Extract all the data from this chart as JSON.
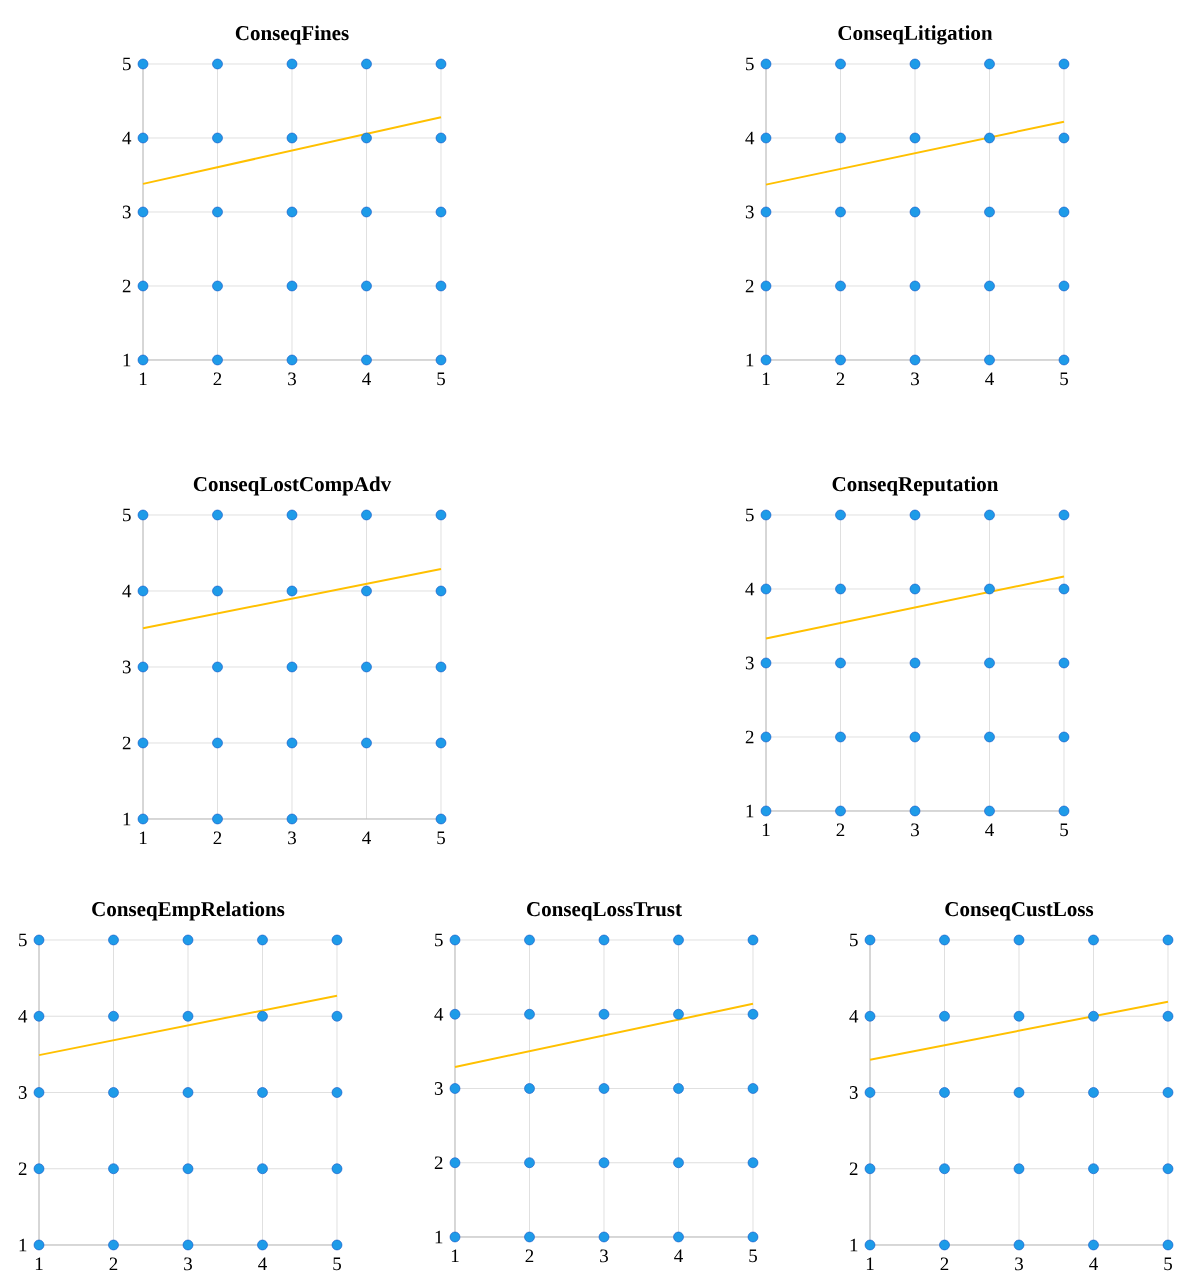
{
  "chart_data": [
    {
      "type": "scatter",
      "title": "ConseqFines",
      "xlim": [
        1,
        5
      ],
      "ylim": [
        1,
        5
      ],
      "xticks": [
        1,
        2,
        3,
        4,
        5
      ],
      "yticks": [
        1,
        2,
        3,
        4,
        5
      ],
      "grid": true,
      "series": [
        {
          "color": "#1e9be8",
          "x": [
            1,
            2,
            3,
            4,
            5,
            1,
            2,
            3,
            4,
            5,
            1,
            2,
            3,
            4,
            5,
            1,
            2,
            3,
            4,
            5,
            1,
            2,
            3,
            4,
            5
          ],
          "values": [
            5,
            5,
            5,
            5,
            5,
            4,
            4,
            4,
            4,
            4,
            3,
            3,
            3,
            3,
            3,
            2,
            2,
            2,
            2,
            2,
            1,
            1,
            1,
            1,
            1
          ]
        },
        {
          "type": "line",
          "marker": "none",
          "color": "#ffc000",
          "x": [
            1,
            5
          ],
          "values": [
            3.38,
            4.28
          ]
        }
      ]
    },
    {
      "type": "scatter",
      "title": "ConseqLitigation",
      "xlim": [
        1,
        5
      ],
      "ylim": [
        1,
        5
      ],
      "xticks": [
        1,
        2,
        3,
        4,
        5
      ],
      "yticks": [
        1,
        2,
        3,
        4,
        5
      ],
      "grid": true,
      "series": [
        {
          "color": "#1e9be8",
          "x": [
            1,
            2,
            3,
            4,
            5,
            1,
            2,
            3,
            4,
            5,
            1,
            2,
            3,
            4,
            5,
            1,
            2,
            3,
            4,
            5,
            1,
            2,
            3,
            4,
            5
          ],
          "values": [
            5,
            5,
            5,
            5,
            5,
            4,
            4,
            4,
            4,
            4,
            3,
            3,
            3,
            3,
            3,
            2,
            2,
            2,
            2,
            2,
            1,
            1,
            1,
            1,
            1
          ]
        },
        {
          "type": "line",
          "marker": "none",
          "color": "#ffc000",
          "x": [
            1,
            5
          ],
          "values": [
            3.37,
            4.22
          ]
        }
      ]
    },
    {
      "type": "scatter",
      "title": "ConseqLostCompAdv",
      "xlim": [
        1,
        5
      ],
      "ylim": [
        1,
        5
      ],
      "xticks": [
        1,
        2,
        3,
        4,
        5
      ],
      "yticks": [
        1,
        2,
        3,
        4,
        5
      ],
      "grid": true,
      "series": [
        {
          "color": "#1e9be8",
          "x": [
            1,
            2,
            3,
            4,
            5,
            1,
            2,
            3,
            4,
            5,
            1,
            2,
            3,
            4,
            5,
            1,
            2,
            3,
            4,
            5,
            1,
            2,
            3,
            5
          ],
          "values": [
            5,
            5,
            5,
            5,
            5,
            4,
            4,
            4,
            4,
            4,
            3,
            3,
            3,
            3,
            3,
            2,
            2,
            2,
            2,
            2,
            1,
            1,
            1,
            1
          ]
        },
        {
          "type": "line",
          "marker": "none",
          "color": "#ffc000",
          "x": [
            1,
            5
          ],
          "values": [
            3.51,
            4.29
          ]
        }
      ]
    },
    {
      "type": "scatter",
      "title": "ConseqReputation",
      "xlim": [
        1,
        5
      ],
      "ylim": [
        1,
        5
      ],
      "xticks": [
        1,
        2,
        3,
        4,
        5
      ],
      "yticks": [
        1,
        2,
        3,
        4,
        5
      ],
      "grid": true,
      "series": [
        {
          "color": "#1e9be8",
          "x": [
            1,
            2,
            3,
            4,
            5,
            1,
            2,
            3,
            4,
            5,
            1,
            2,
            3,
            4,
            5,
            1,
            2,
            3,
            4,
            5,
            1,
            2,
            3,
            4,
            5
          ],
          "values": [
            5,
            5,
            5,
            5,
            5,
            4,
            4,
            4,
            4,
            4,
            3,
            3,
            3,
            3,
            3,
            2,
            2,
            2,
            2,
            2,
            1,
            1,
            1,
            1,
            1
          ]
        },
        {
          "type": "line",
          "marker": "none",
          "color": "#ffc000",
          "x": [
            1,
            5
          ],
          "values": [
            3.33,
            4.17
          ]
        }
      ]
    },
    {
      "type": "scatter",
      "title": "ConseqEmpRelations",
      "xlim": [
        1,
        5
      ],
      "ylim": [
        1,
        5
      ],
      "xticks": [
        1,
        2,
        3,
        4,
        5
      ],
      "yticks": [
        1,
        2,
        3,
        4,
        5
      ],
      "grid": true,
      "series": [
        {
          "color": "#1e9be8",
          "x": [
            1,
            2,
            3,
            4,
            5,
            1,
            2,
            3,
            4,
            5,
            1,
            2,
            3,
            4,
            5,
            1,
            2,
            3,
            4,
            5,
            1,
            2,
            3,
            4,
            5
          ],
          "values": [
            5,
            5,
            5,
            5,
            5,
            4,
            4,
            4,
            4,
            4,
            3,
            3,
            3,
            3,
            3,
            2,
            2,
            2,
            2,
            2,
            1,
            1,
            1,
            1,
            1
          ]
        },
        {
          "type": "line",
          "marker": "none",
          "color": "#ffc000",
          "x": [
            1,
            5
          ],
          "values": [
            3.49,
            4.27
          ]
        }
      ]
    },
    {
      "type": "scatter",
      "title": "ConseqLossTrust",
      "xlim": [
        1,
        5
      ],
      "ylim": [
        1,
        5
      ],
      "xticks": [
        1,
        2,
        3,
        4,
        5
      ],
      "yticks": [
        1,
        2,
        3,
        4,
        5
      ],
      "grid": true,
      "series": [
        {
          "color": "#1e9be8",
          "x": [
            1,
            2,
            3,
            4,
            5,
            1,
            2,
            3,
            4,
            5,
            1,
            2,
            3,
            4,
            5,
            1,
            2,
            3,
            4,
            5,
            1,
            2,
            3,
            4,
            5
          ],
          "values": [
            5,
            5,
            5,
            5,
            5,
            4,
            4,
            4,
            4,
            4,
            3,
            3,
            3,
            3,
            3,
            2,
            2,
            2,
            2,
            2,
            1,
            1,
            1,
            1,
            1
          ]
        },
        {
          "type": "line",
          "marker": "none",
          "color": "#ffc000",
          "x": [
            1,
            5
          ],
          "values": [
            3.29,
            4.14
          ]
        }
      ]
    },
    {
      "type": "scatter",
      "title": "ConseqCustLoss",
      "xlim": [
        1,
        5
      ],
      "ylim": [
        1,
        5
      ],
      "xticks": [
        1,
        2,
        3,
        4,
        5
      ],
      "yticks": [
        1,
        2,
        3,
        4,
        5
      ],
      "grid": true,
      "series": [
        {
          "color": "#1e9be8",
          "x": [
            1,
            2,
            3,
            4,
            5,
            1,
            2,
            3,
            4,
            5,
            1,
            2,
            3,
            4,
            5,
            1,
            2,
            3,
            4,
            5,
            1,
            2,
            3,
            4,
            5
          ],
          "values": [
            5,
            5,
            5,
            5,
            5,
            4,
            4,
            4,
            4,
            4,
            3,
            3,
            3,
            3,
            3,
            2,
            2,
            2,
            2,
            2,
            1,
            1,
            1,
            1,
            1
          ]
        },
        {
          "type": "line",
          "marker": "none",
          "color": "#ffc000",
          "x": [
            1,
            5
          ],
          "values": [
            3.43,
            4.19
          ]
        }
      ]
    }
  ]
}
